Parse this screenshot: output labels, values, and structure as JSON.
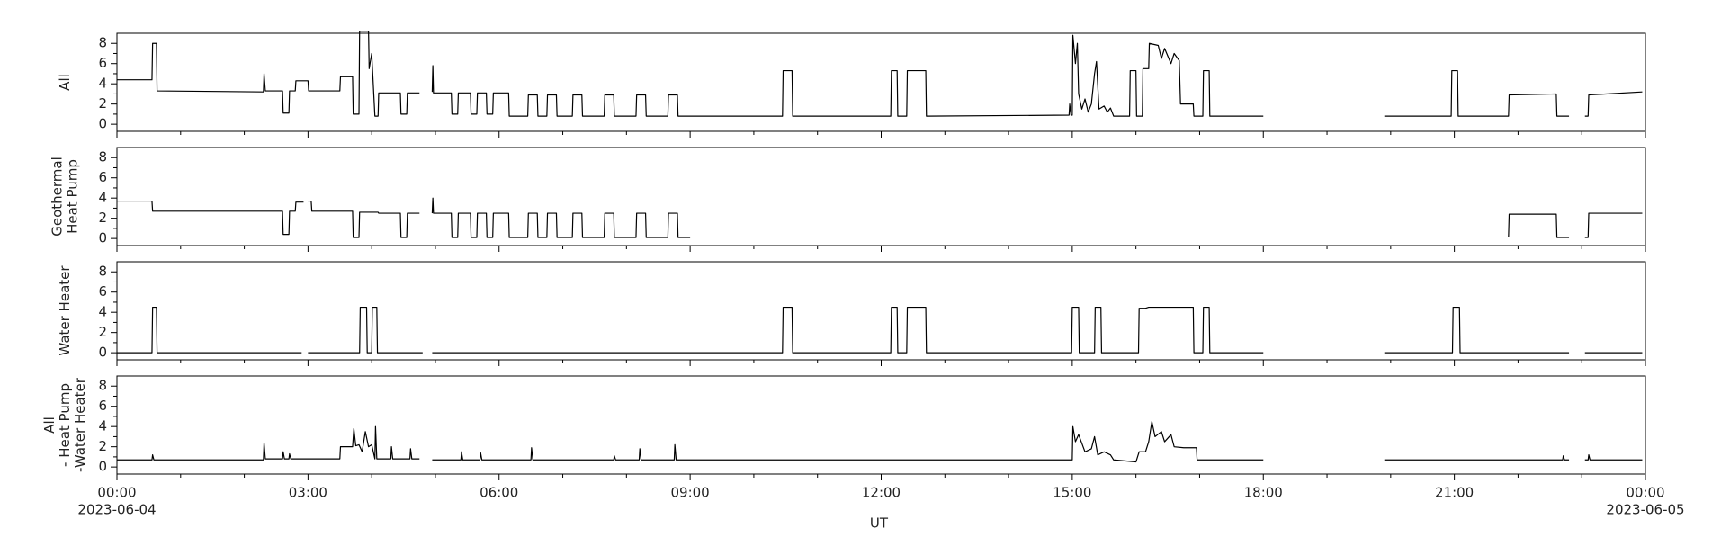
{
  "x_axis": {
    "xlim": [
      0,
      24
    ],
    "xticks": [
      {
        "value": 0,
        "label": "00:00"
      },
      {
        "value": 3,
        "label": "03:00"
      },
      {
        "value": 6,
        "label": "06:00"
      },
      {
        "value": 9,
        "label": "09:00"
      },
      {
        "value": 12,
        "label": "12:00"
      },
      {
        "value": 15,
        "label": "15:00"
      },
      {
        "value": 18,
        "label": "18:00"
      },
      {
        "value": 21,
        "label": "21:00"
      },
      {
        "value": 24,
        "label": "00:00"
      }
    ],
    "xminor_ticks": [
      1,
      2,
      4,
      5,
      7,
      8,
      10,
      11,
      13,
      14,
      16,
      17,
      19,
      20,
      22,
      23
    ],
    "date_labels": [
      {
        "value": 0,
        "label": "2023-06-04"
      },
      {
        "value": 24,
        "label": "2023-06-05"
      }
    ],
    "xlabel": "UT"
  },
  "chart_data": [
    {
      "type": "line",
      "ylabel": [
        "All"
      ],
      "color": "#000000",
      "ylim": [
        -0.7,
        9
      ],
      "yticks": [
        0,
        2,
        4,
        6,
        8
      ],
      "yminor_ticks": [
        1,
        3,
        5,
        7
      ],
      "x": [
        0,
        0.55,
        0.56,
        0.62,
        0.63,
        2.3,
        2.31,
        2.33,
        2.6,
        2.61,
        2.7,
        2.71,
        2.8,
        2.81,
        3.0,
        3.01,
        3.5,
        3.51,
        3.7,
        3.71,
        3.8,
        3.81,
        3.95,
        3.96,
        4.0,
        4.05,
        4.1,
        4.11,
        4.45,
        4.46,
        4.55,
        4.56,
        4.75,
        4.85,
        4.95,
        4.96,
        4.97,
        5.25,
        5.26,
        5.35,
        5.36,
        5.55,
        5.56,
        5.65,
        5.66,
        5.8,
        5.81,
        5.9,
        5.91,
        6.15,
        6.16,
        6.45,
        6.46,
        6.6,
        6.61,
        6.75,
        6.76,
        6.9,
        6.91,
        7.15,
        7.16,
        7.3,
        7.31,
        7.65,
        7.66,
        7.8,
        7.81,
        8.15,
        8.16,
        8.3,
        8.31,
        8.65,
        8.66,
        8.8,
        8.81,
        10.45,
        10.46,
        10.6,
        10.61,
        12.15,
        12.16,
        12.25,
        12.26,
        12.4,
        12.41,
        12.7,
        12.71,
        14.95,
        14.96,
        14.98,
        15.0,
        15.01,
        15.05,
        15.08,
        15.1,
        15.15,
        15.2,
        15.25,
        15.3,
        15.35,
        15.38,
        15.42,
        15.5,
        15.55,
        15.6,
        15.65,
        15.9,
        15.91,
        16.0,
        16.01,
        16.1,
        16.11,
        16.2,
        16.21,
        16.35,
        16.4,
        16.45,
        16.55,
        16.6,
        16.68,
        16.7,
        16.9,
        16.91,
        17.05,
        17.06,
        17.15,
        17.16,
        18.0,
        19.0,
        19.9,
        20.95,
        20.96,
        21.05,
        21.06,
        21.85,
        21.86,
        22.6,
        22.61,
        22.8,
        22.9,
        23.05,
        23.1,
        23.11,
        23.95
      ],
      "values": [
        4.4,
        4.4,
        8,
        8,
        3.3,
        3.2,
        5,
        3.3,
        3.3,
        1.1,
        1.1,
        3.3,
        3.3,
        4.3,
        4.3,
        3.3,
        3.3,
        4.7,
        4.7,
        1.0,
        1.0,
        9.2,
        9.2,
        5.5,
        7,
        0.8,
        0.8,
        3.1,
        3.1,
        1.0,
        1.0,
        3.1,
        3.1,
        null,
        3.2,
        5.8,
        3.1,
        3.1,
        1.0,
        1.0,
        3.1,
        3.1,
        1.0,
        1.0,
        3.1,
        3.1,
        1.0,
        1.0,
        3.1,
        3.1,
        0.8,
        0.8,
        2.9,
        2.9,
        0.8,
        0.8,
        2.9,
        2.9,
        0.8,
        0.8,
        2.9,
        2.9,
        0.8,
        0.8,
        2.9,
        2.9,
        0.8,
        0.8,
        2.9,
        2.9,
        0.8,
        0.8,
        2.9,
        2.9,
        0.8,
        0.8,
        5.3,
        5.3,
        0.8,
        0.8,
        5.3,
        5.3,
        0.8,
        0.8,
        5.3,
        5.3,
        0.8,
        0.9,
        2,
        0.9,
        0.9,
        8.8,
        6,
        8,
        3,
        1.5,
        2.5,
        1.2,
        2,
        5,
        6.2,
        1.5,
        1.8,
        1.2,
        1.6,
        0.8,
        0.8,
        5.3,
        5.3,
        0.8,
        0.8,
        5.5,
        5.5,
        8,
        7.8,
        6.5,
        7.5,
        6,
        7,
        6.3,
        2,
        2,
        0.8,
        0.8,
        5.3,
        5.3,
        0.8,
        0.8,
        null,
        0.8,
        0.8,
        5.3,
        5.3,
        0.8,
        0.8,
        2.9,
        3.0,
        0.8,
        0.8,
        null,
        0.8,
        0.8,
        2.9,
        3.2
      ]
    },
    {
      "type": "line",
      "ylabel": [
        "Geothermal",
        "Heat Pump"
      ],
      "color": "#000000",
      "ylim": [
        -0.7,
        9
      ],
      "yticks": [
        0,
        2,
        4,
        6,
        8
      ],
      "yminor_ticks": [
        1,
        3,
        5,
        7
      ],
      "x": [
        0,
        0.55,
        0.56,
        2.6,
        2.61,
        2.7,
        2.71,
        2.8,
        2.81,
        2.93,
        2.97,
        3.0,
        3.05,
        3.06,
        3.7,
        3.71,
        3.8,
        3.81,
        4.1,
        4.11,
        4.45,
        4.46,
        4.55,
        4.56,
        4.75,
        4.85,
        4.95,
        4.96,
        4.97,
        5.25,
        5.26,
        5.35,
        5.36,
        5.55,
        5.56,
        5.65,
        5.66,
        5.8,
        5.81,
        5.9,
        5.91,
        6.15,
        6.16,
        6.45,
        6.46,
        6.6,
        6.61,
        6.75,
        6.76,
        6.9,
        6.91,
        7.15,
        7.16,
        7.3,
        7.31,
        7.65,
        7.66,
        7.8,
        7.81,
        8.15,
        8.16,
        8.3,
        8.31,
        8.65,
        8.66,
        8.8,
        8.81,
        9.0,
        9.02,
        18.0,
        18.02,
        21.85,
        21.86,
        22.6,
        22.61,
        22.8,
        22.9,
        23.05,
        23.1,
        23.11,
        23.95
      ],
      "values": [
        3.7,
        3.7,
        2.7,
        2.7,
        0.4,
        0.4,
        2.7,
        2.7,
        3.6,
        3.6,
        null,
        3.7,
        3.7,
        2.7,
        2.7,
        0.1,
        0.1,
        2.6,
        2.6,
        2.5,
        2.5,
        0.1,
        0.1,
        2.5,
        2.5,
        null,
        2.5,
        4,
        2.5,
        2.5,
        0.1,
        0.1,
        2.5,
        2.5,
        0.1,
        0.1,
        2.5,
        2.5,
        0.1,
        0.1,
        2.5,
        2.5,
        0.1,
        0.1,
        2.5,
        2.5,
        0.1,
        0.1,
        2.5,
        2.5,
        0.1,
        0.1,
        2.5,
        2.5,
        0.1,
        0.1,
        2.5,
        2.5,
        0.1,
        0.1,
        2.5,
        2.5,
        0.1,
        0.1,
        2.5,
        2.5,
        0.1,
        0.1,
        null,
        0.1,
        null,
        0.1,
        2.4,
        2.4,
        0.1,
        0.1,
        null,
        0.1,
        0.1,
        2.5,
        2.5
      ]
    },
    {
      "type": "line",
      "ylabel": [
        "Water Heater"
      ],
      "color": "#000000",
      "ylim": [
        -0.7,
        9
      ],
      "yticks": [
        0,
        2,
        4,
        6,
        8
      ],
      "yminor_ticks": [
        1,
        3,
        5,
        7
      ],
      "x": [
        0,
        0.55,
        0.56,
        0.62,
        0.63,
        2.9,
        2.95,
        3.0,
        3.81,
        3.82,
        3.92,
        3.93,
        4.0,
        4.01,
        4.08,
        4.09,
        4.8,
        4.88,
        4.95,
        10.45,
        10.46,
        10.6,
        10.61,
        12.15,
        12.16,
        12.25,
        12.26,
        12.4,
        12.41,
        12.7,
        12.71,
        14.99,
        15.0,
        15.1,
        15.11,
        15.35,
        15.36,
        15.45,
        15.46,
        16.04,
        16.05,
        16.15,
        16.2,
        16.9,
        16.91,
        17.05,
        17.06,
        17.15,
        17.16,
        18.0,
        19.0,
        19.9,
        20.97,
        20.98,
        21.08,
        21.09,
        22.8,
        22.9,
        23.05,
        23.95
      ],
      "values": [
        0,
        0,
        4.5,
        4.5,
        0,
        0,
        null,
        0,
        0,
        4.5,
        4.5,
        0,
        0,
        4.5,
        4.5,
        0,
        0,
        null,
        0,
        0,
        4.5,
        4.5,
        0,
        0,
        4.5,
        4.5,
        0,
        0,
        4.5,
        4.5,
        0,
        0,
        4.5,
        4.5,
        0,
        0,
        4.5,
        4.5,
        0,
        0,
        4.4,
        4.4,
        4.5,
        4.5,
        0,
        0,
        4.5,
        4.5,
        0,
        0,
        null,
        0,
        0,
        4.5,
        4.5,
        0,
        0,
        null,
        0,
        0
      ]
    },
    {
      "type": "line",
      "ylabel": [
        "All",
        "- Heat Pump",
        "-Water Heater"
      ],
      "color": "#000000",
      "ylim": [
        -0.7,
        9
      ],
      "yticks": [
        0,
        2,
        4,
        6,
        8
      ],
      "yminor_ticks": [
        1,
        3,
        5,
        7
      ],
      "x": [
        0,
        0.55,
        0.56,
        0.58,
        2.3,
        2.31,
        2.33,
        2.6,
        2.61,
        2.63,
        2.7,
        2.71,
        2.73,
        3.5,
        3.51,
        3.7,
        3.72,
        3.75,
        3.8,
        3.85,
        3.9,
        3.95,
        4.0,
        4.05,
        4.06,
        4.08,
        4.3,
        4.31,
        4.33,
        4.6,
        4.61,
        4.63,
        4.75,
        4.85,
        4.95,
        5.4,
        5.41,
        5.43,
        5.7,
        5.71,
        5.73,
        6.2,
        6.5,
        6.51,
        6.53,
        7.8,
        7.81,
        7.83,
        8.2,
        8.21,
        8.23,
        8.75,
        8.76,
        8.78,
        15.0,
        15.01,
        15.05,
        15.1,
        15.2,
        15.3,
        15.35,
        15.4,
        15.5,
        15.6,
        15.65,
        16.0,
        16.05,
        16.15,
        16.2,
        16.25,
        16.3,
        16.4,
        16.45,
        16.55,
        16.6,
        16.75,
        16.95,
        16.96,
        18.0,
        19.0,
        19.9,
        22.7,
        22.71,
        22.73,
        22.8,
        22.9,
        23.05,
        23.1,
        23.11,
        23.13,
        23.95
      ],
      "values": [
        0.7,
        0.7,
        1.2,
        0.7,
        0.7,
        2.4,
        0.8,
        0.8,
        1.5,
        0.8,
        0.8,
        1.3,
        0.8,
        0.8,
        2.0,
        2.0,
        3.8,
        2.1,
        2.2,
        1.5,
        3.5,
        2.0,
        2.2,
        0.8,
        4.0,
        0.8,
        0.8,
        2.0,
        0.8,
        0.8,
        1.8,
        0.8,
        0.8,
        null,
        0.7,
        0.7,
        1.5,
        0.7,
        0.7,
        1.4,
        0.7,
        0.7,
        0.7,
        1.9,
        0.7,
        0.7,
        1.1,
        0.7,
        0.7,
        1.8,
        0.7,
        0.7,
        2.2,
        0.7,
        0.7,
        4.0,
        2.5,
        3.2,
        1.5,
        1.8,
        3.0,
        1.2,
        1.5,
        1.2,
        0.7,
        0.5,
        1.5,
        1.5,
        2.5,
        4.5,
        3.0,
        3.5,
        2.5,
        3.2,
        2.0,
        1.9,
        1.9,
        0.7,
        0.7,
        null,
        0.7,
        0.7,
        1.1,
        0.7,
        0.7,
        null,
        0.7,
        0.7,
        1.2,
        0.7,
        0.7
      ]
    }
  ]
}
